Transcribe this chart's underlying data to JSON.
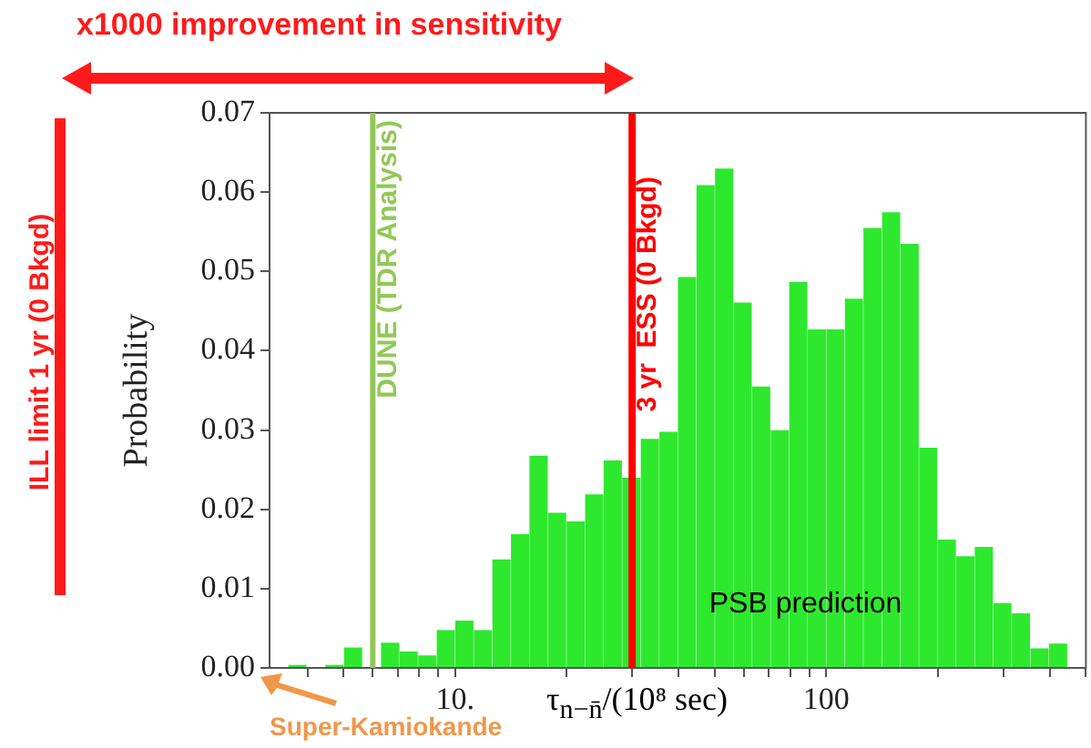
{
  "chart_data": {
    "type": "histogram",
    "xlabel": "τ$_{n−n̄}$/(10⁸ sec)",
    "ylabel": "Probability",
    "bins": [
      3.162,
      3.548,
      3.981,
      4.467,
      5.012,
      5.623,
      6.31,
      7.079,
      7.943,
      8.913,
      10,
      11.22,
      12.59,
      14.13,
      15.85,
      17.78,
      19.95,
      22.39,
      25.12,
      28.18,
      31.62,
      35.48,
      39.81,
      44.67,
      50.12,
      56.23,
      63.1,
      70.79,
      79.43,
      89.13,
      100,
      112.2,
      125.9,
      141.3,
      158.5,
      177.8,
      199.5,
      223.9,
      251.2,
      281.8,
      316.2,
      354.8,
      398.1,
      446.7,
      501.2
    ],
    "values": [
      0,
      0.0003,
      0,
      0.0003,
      0.0025,
      null,
      0.0031,
      0.002,
      0.0015,
      0.0047,
      0.0059,
      0.0047,
      0.0136,
      0.0168,
      0.0267,
      0.0195,
      0.0184,
      0.0218,
      0.0261,
      0.0239,
      0.0288,
      0.0297,
      0.0492,
      0.0608,
      0.0629,
      0.046,
      0.0354,
      0.0299,
      0.0486,
      0.0426,
      0.0426,
      0.0465,
      0.0554,
      0.0574,
      0.0534,
      0.0277,
      0.0161,
      0.014,
      0.0152,
      0.0081,
      0.0068,
      0.0024,
      0.003,
      null
    ],
    "color": "#2ee82e",
    "log": "x",
    "grid": false,
    "legend": false,
    "xlim": [
      3.162,
      501.2
    ],
    "xticks": [
      {
        "value": 4,
        "label": null
      },
      {
        "value": 5,
        "label": null
      },
      {
        "value": 6,
        "label": null
      },
      {
        "value": 7,
        "label": null
      },
      {
        "value": 8,
        "label": null
      },
      {
        "value": 9,
        "label": null
      },
      {
        "value": 10,
        "label": "10."
      },
      {
        "value": 20,
        "label": null
      },
      {
        "value": 30,
        "label": null
      },
      {
        "value": 40,
        "label": null
      },
      {
        "value": 50,
        "label": null
      },
      {
        "value": 60,
        "label": null
      },
      {
        "value": 70,
        "label": null
      },
      {
        "value": 80,
        "label": null
      },
      {
        "value": 90,
        "label": null
      },
      100,
      {
        "value": 200,
        "label": null
      },
      {
        "value": 300,
        "label": null
      },
      {
        "value": 400,
        "label": null
      },
      {
        "value": 500,
        "label": null
      }
    ],
    "ylim": [
      0,
      0.07
    ],
    "yticks": [
      {
        "value": 0,
        "label": "0.00"
      },
      {
        "value": 0.01,
        "label": "0.01"
      },
      {
        "value": 0.02,
        "label": "0.02"
      },
      {
        "value": 0.03,
        "label": "0.03"
      },
      {
        "value": 0.04,
        "label": "0.04"
      },
      {
        "value": 0.05,
        "label": "0.05"
      },
      {
        "value": 0.06,
        "label": "0.06"
      },
      {
        "value": 0.07,
        "label": "0.07"
      }
    ],
    "ref_lines": [
      {
        "axis": "x",
        "value": 6,
        "label": "DUNE (TDR Analysis)",
        "color": "#92c857"
      },
      {
        "axis": "x",
        "value": 30,
        "label": "3 yr  ESS (0 Bkgd)",
        "color": "#ff0000"
      }
    ],
    "annotations": [
      "x1000 improvement in sensitivity",
      "ILL limit 1 yr (0 Bkgd)",
      "Super-Kamiokande",
      {
        "text": "PSB prediction",
        "x": 88,
        "y": 0.008
      }
    ]
  }
}
